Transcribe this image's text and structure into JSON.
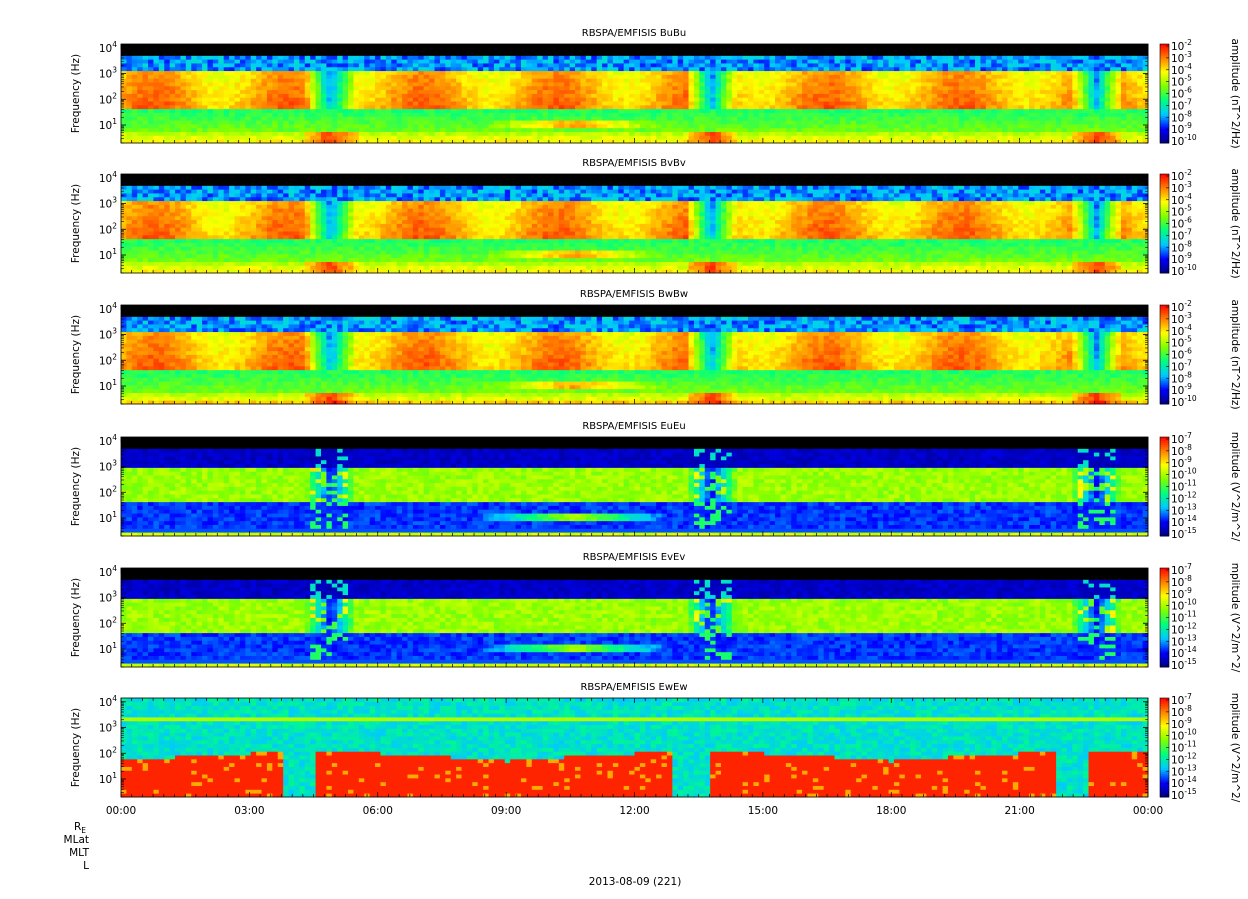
{
  "chart_data": {
    "type": "heatmap",
    "x_range": [
      "2013-08-09 00:00",
      "2013-08-10 00:00"
    ],
    "x_tick_labels": [
      "00:00",
      "03:00",
      "06:00",
      "09:00",
      "12:00",
      "15:00",
      "18:00",
      "21:00",
      "00:00"
    ],
    "x_ticks_hours": [
      0,
      3,
      6,
      9,
      12,
      15,
      18,
      21,
      24
    ],
    "y_scale": "log",
    "y_range_hz": [
      2,
      14000
    ],
    "ylabel": "Frequency (Hz)",
    "y_tick_base": "10",
    "y_tick_exponents": [
      "1",
      "2",
      "3",
      "4"
    ],
    "colormap": [
      "#000080",
      "#0000ff",
      "#00c8ff",
      "#00ff80",
      "#80ff00",
      "#ffff00",
      "#ff8000",
      "#ff0000"
    ],
    "no_data_color": "#000000",
    "panels": [
      {
        "title": "RBSPA/EMFISIS  BuBu",
        "component": "BuBu",
        "colorbar_label": "amplitude (nT^2/Hz)",
        "color_exponents": [
          "-2",
          "-3",
          "-4",
          "-5",
          "-6",
          "-7",
          "-8",
          "-9",
          "-10"
        ]
      },
      {
        "title": "RBSPA/EMFISIS  BvBv",
        "component": "BvBv",
        "colorbar_label": "amplitude (nT^2/Hz)",
        "color_exponents": [
          "-2",
          "-3",
          "-4",
          "-5",
          "-6",
          "-7",
          "-8",
          "-9",
          "-10"
        ]
      },
      {
        "title": "RBSPA/EMFISIS  BwBw",
        "component": "BwBw",
        "colorbar_label": "amplitude (nT^2/Hz)",
        "color_exponents": [
          "-2",
          "-3",
          "-4",
          "-5",
          "-6",
          "-7",
          "-8",
          "-9",
          "-10"
        ]
      },
      {
        "title": "RBSPA/EMFISIS  EuEu",
        "component": "EuEu",
        "colorbar_label": "mplitude (V^2/m^2/",
        "color_exponents": [
          "-7",
          "-8",
          "-9",
          "-10",
          "-11",
          "-12",
          "-13",
          "-14",
          "-15"
        ]
      },
      {
        "title": "RBSPA/EMFISIS  EvEv",
        "component": "EvEv",
        "colorbar_label": "mplitude (V^2/m^2/",
        "color_exponents": [
          "-7",
          "-8",
          "-9",
          "-10",
          "-11",
          "-12",
          "-13",
          "-14",
          "-15"
        ]
      },
      {
        "title": "RBSPA/EMFISIS  EwEw",
        "component": "EwEw",
        "colorbar_label": "mplitude (V^2/m^2/",
        "color_exponents": [
          "-7",
          "-8",
          "-9",
          "-10",
          "-11",
          "-12",
          "-13",
          "-14",
          "-15"
        ]
      }
    ],
    "ephemeris_labels": {
      "re": "R",
      "re_sub": "E",
      "mlat": "MLat",
      "mlt": "MLT",
      "l": "L"
    },
    "date_label": "2013-08-09 (221)"
  }
}
